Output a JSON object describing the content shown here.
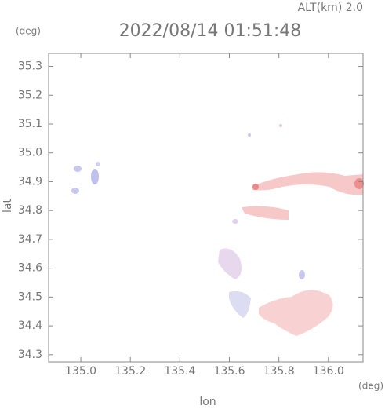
{
  "chart_data": {
    "type": "map",
    "header": "ALT(km) 2.0",
    "y_unit": "(deg)",
    "title": "2022/08/14 01:51:48",
    "ylabel": "lat",
    "xlabel": "lon",
    "x_unit": "(deg)",
    "xlim": [
      134.87,
      136.14
    ],
    "ylim": [
      34.275,
      35.345
    ],
    "xticks": [
      {
        "value": 135.0,
        "label": "135.0"
      },
      135.2,
      135.4,
      135.6,
      135.8,
      {
        "value": 136.0,
        "label": "136.0"
      }
    ],
    "yticks": [
      35.3,
      35.2,
      35.1,
      {
        "value": 35.0,
        "label": "35.0"
      },
      34.9,
      34.8,
      34.7,
      34.6,
      34.5,
      34.4,
      34.3
    ]
  }
}
